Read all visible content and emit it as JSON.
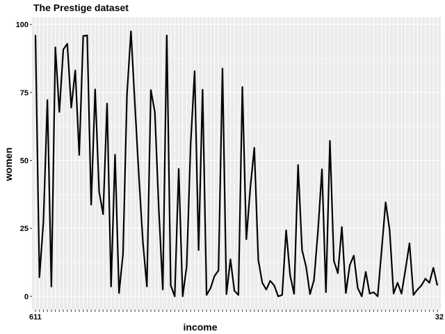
{
  "chart_data": {
    "type": "line",
    "title": "The Prestige dataset",
    "xlabel": "income",
    "ylabel": "women",
    "x_first_tick_label": "611",
    "x_last_tick_label": "32",
    "yticks": [
      0,
      25,
      50,
      75,
      100
    ],
    "ylim": [
      -4.9,
      102.6
    ],
    "grid": true,
    "legend": "none",
    "series": [
      {
        "color": "#000000",
        "values": [
          96.1,
          7.0,
          27.5,
          72.2,
          3.6,
          91.6,
          67.8,
          90.8,
          92.9,
          69.4,
          83.1,
          52.0,
          95.8,
          96.0,
          33.7,
          76.1,
          38.5,
          30.2,
          70.9,
          3.6,
          52.1,
          1.2,
          15.5,
          74.2,
          97.5,
          70.4,
          44.0,
          20.0,
          3.6,
          75.9,
          67.8,
          32.0,
          2.5,
          96.0,
          4.0,
          0.0,
          46.9,
          0.0,
          11.0,
          56.0,
          82.8,
          17.0,
          76.0,
          0.5,
          3.0,
          7.5,
          9.5,
          83.8,
          0.8,
          13.6,
          2.0,
          0.5,
          77.0,
          21.0,
          40.0,
          54.6,
          13.4,
          5.0,
          2.5,
          5.7,
          4.0,
          0.0,
          0.5,
          24.3,
          7.7,
          0.9,
          48.3,
          17.0,
          11.0,
          0.8,
          6.0,
          24.0,
          46.7,
          1.5,
          57.2,
          13.0,
          8.5,
          25.5,
          1.2,
          11.5,
          15.0,
          3.0,
          0.0,
          9.0,
          1.0,
          1.5,
          0.0,
          17.0,
          34.6,
          24.5,
          1.0,
          5.0,
          1.0,
          10.0,
          19.5,
          0.5,
          2.5,
          4.0,
          6.5,
          5.0,
          10.5,
          4.0
        ]
      }
    ]
  }
}
